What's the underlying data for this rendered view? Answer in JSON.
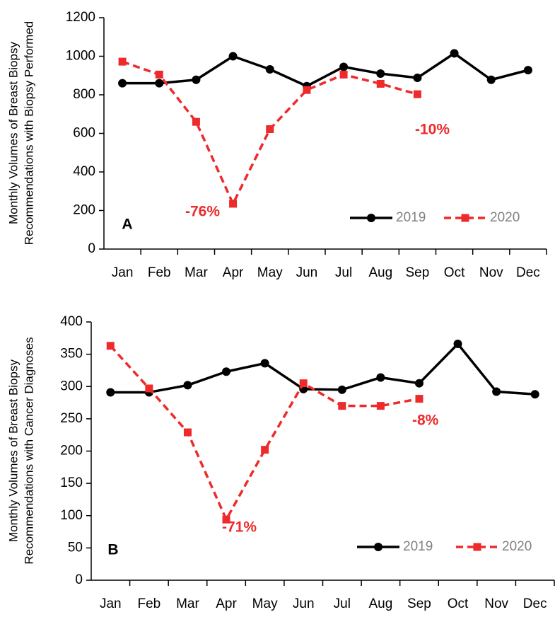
{
  "chart_data": [
    {
      "type": "line",
      "panel_label": "A",
      "ylabel": [
        "Monthly Volumes of Breast Biopsy",
        "Recommendations with Biopsy Performed"
      ],
      "categories": [
        "Jan",
        "Feb",
        "Mar",
        "Apr",
        "May",
        "Jun",
        "Jul",
        "Aug",
        "Sep",
        "Oct",
        "Nov",
        "Dec"
      ],
      "series": [
        {
          "name": "2019",
          "color": "#000000",
          "dashed": false,
          "marker": "circle",
          "values": [
            860,
            860,
            878,
            1000,
            932,
            845,
            945,
            910,
            888,
            1015,
            878,
            928
          ]
        },
        {
          "name": "2020",
          "color": "#ee2a2a",
          "dashed": true,
          "marker": "square",
          "values": [
            972,
            905,
            660,
            235,
            622,
            825,
            905,
            857,
            803,
            null,
            null,
            null
          ]
        }
      ],
      "annotations": [
        "-76%",
        "-10%"
      ],
      "ylim": [
        0,
        1200
      ],
      "yticks": [
        0,
        200,
        400,
        600,
        800,
        1000,
        1200
      ]
    },
    {
      "type": "line",
      "panel_label": "B",
      "ylabel": [
        "Monthly Volumes of Breast Biopsy",
        "Recommendations with Cancer Diagnoses"
      ],
      "categories": [
        "Jan",
        "Feb",
        "Mar",
        "Apr",
        "May",
        "Jun",
        "Jul",
        "Aug",
        "Sep",
        "Oct",
        "Nov",
        "Dec"
      ],
      "series": [
        {
          "name": "2019",
          "color": "#000000",
          "dashed": false,
          "marker": "circle",
          "values": [
            291,
            291,
            302,
            323,
            336,
            296,
            295,
            314,
            305,
            366,
            292,
            288
          ]
        },
        {
          "name": "2020",
          "color": "#ee2a2a",
          "dashed": true,
          "marker": "square",
          "values": [
            363,
            297,
            229,
            94,
            202,
            305,
            270,
            270,
            281,
            null,
            null,
            null
          ]
        }
      ],
      "annotations": [
        "-71%",
        "-8%"
      ],
      "ylim": [
        0,
        400
      ],
      "yticks": [
        0,
        50,
        100,
        150,
        200,
        250,
        300,
        350,
        400
      ]
    }
  ]
}
